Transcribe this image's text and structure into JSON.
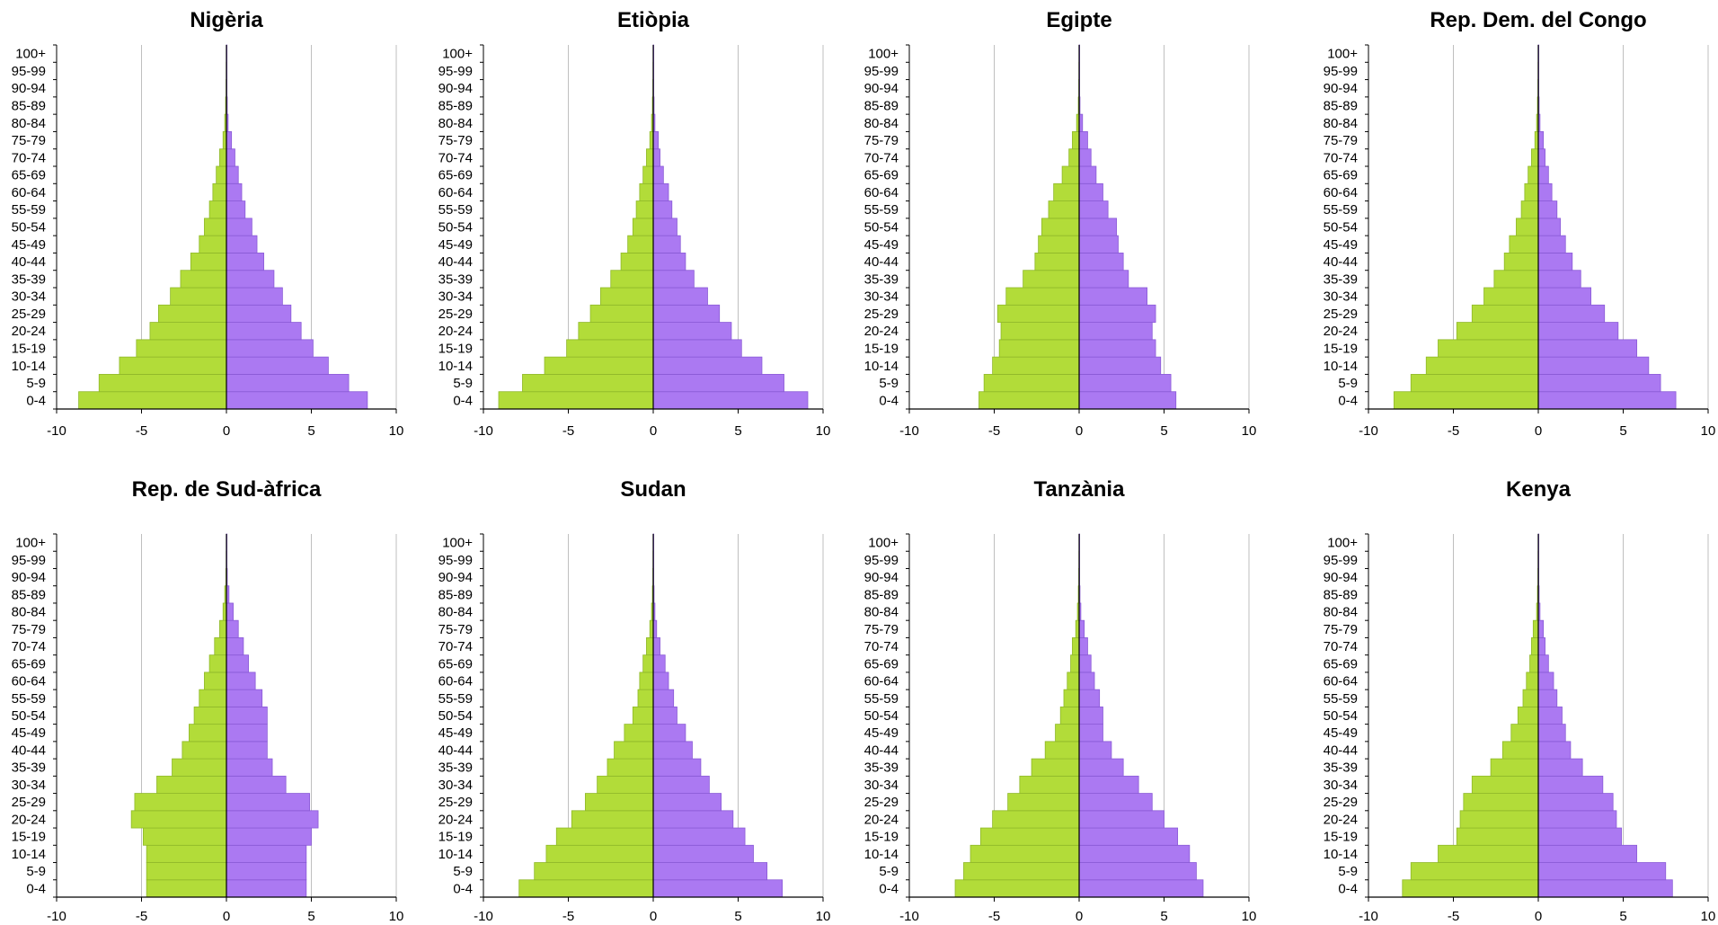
{
  "colors": {
    "male": "#b2dc39",
    "female": "#ab79f2",
    "bar_edge_male": "#8fb82a",
    "bar_edge_female": "#8a5ad6",
    "grid": "#bfbfbf",
    "axis": "#000000"
  },
  "chart_data": [
    {
      "type": "bar",
      "orientation": "horizontal-population-pyramid",
      "title": "Nigèria",
      "categories": [
        "0-4",
        "5-9",
        "10-14",
        "15-19",
        "20-24",
        "25-29",
        "30-34",
        "35-39",
        "40-44",
        "45-49",
        "50-54",
        "55-59",
        "60-64",
        "65-69",
        "70-74",
        "75-79",
        "80-84",
        "85-89",
        "90-94",
        "95-99",
        "100+"
      ],
      "series": [
        {
          "values": [
            -8.7,
            -7.5,
            -6.3,
            -5.3,
            -4.5,
            -4.0,
            -3.3,
            -2.7,
            -2.1,
            -1.6,
            -1.3,
            -1.0,
            -0.8,
            -0.6,
            -0.4,
            -0.2,
            -0.1,
            -0.05,
            -0.02,
            -0.01,
            -0.005
          ]
        },
        {
          "values": [
            8.3,
            7.2,
            6.0,
            5.1,
            4.4,
            3.8,
            3.3,
            2.8,
            2.2,
            1.8,
            1.5,
            1.1,
            0.9,
            0.7,
            0.5,
            0.3,
            0.1,
            0.05,
            0.02,
            0.01,
            0.005
          ]
        }
      ],
      "xlim": [
        -10,
        10
      ],
      "xticks": [
        "-10",
        "-5",
        "0",
        "5",
        "10"
      ],
      "grid": true
    },
    {
      "type": "bar",
      "orientation": "horizontal-population-pyramid",
      "title": "Etiòpia",
      "categories": [
        "0-4",
        "5-9",
        "10-14",
        "15-19",
        "20-24",
        "25-29",
        "30-34",
        "35-39",
        "40-44",
        "45-49",
        "50-54",
        "55-59",
        "60-64",
        "65-69",
        "70-74",
        "75-79",
        "80-84",
        "85-89",
        "90-94",
        "95-99",
        "100+"
      ],
      "series": [
        {
          "values": [
            -9.1,
            -7.7,
            -6.4,
            -5.1,
            -4.4,
            -3.7,
            -3.1,
            -2.5,
            -1.9,
            -1.5,
            -1.2,
            -1.0,
            -0.8,
            -0.6,
            -0.4,
            -0.2,
            -0.1,
            -0.05,
            -0.02,
            -0.01,
            -0.005
          ]
        },
        {
          "values": [
            9.1,
            7.7,
            6.4,
            5.2,
            4.6,
            3.9,
            3.2,
            2.4,
            1.9,
            1.6,
            1.4,
            1.1,
            0.9,
            0.6,
            0.4,
            0.3,
            0.1,
            0.05,
            0.02,
            0.01,
            0.005
          ]
        }
      ],
      "xlim": [
        -10,
        10
      ],
      "xticks": [
        "-10",
        "-5",
        "0",
        "5",
        "10"
      ],
      "grid": true
    },
    {
      "type": "bar",
      "orientation": "horizontal-population-pyramid",
      "title": "Egipte",
      "categories": [
        "0-4",
        "5-9",
        "10-14",
        "15-19",
        "20-24",
        "25-29",
        "30-34",
        "35-39",
        "40-44",
        "45-49",
        "50-54",
        "55-59",
        "60-64",
        "65-69",
        "70-74",
        "75-79",
        "80-84",
        "85-89",
        "90-94",
        "95-99",
        "100+"
      ],
      "series": [
        {
          "values": [
            -5.9,
            -5.6,
            -5.1,
            -4.7,
            -4.6,
            -4.8,
            -4.3,
            -3.3,
            -2.6,
            -2.4,
            -2.2,
            -1.8,
            -1.5,
            -1.0,
            -0.6,
            -0.4,
            -0.15,
            -0.05,
            -0.02,
            -0.01,
            -0.005
          ]
        },
        {
          "values": [
            5.7,
            5.4,
            4.8,
            4.5,
            4.3,
            4.5,
            4.0,
            2.9,
            2.6,
            2.3,
            2.2,
            1.7,
            1.4,
            1.0,
            0.7,
            0.5,
            0.2,
            0.05,
            0.02,
            0.01,
            0.005
          ]
        }
      ],
      "xlim": [
        -10,
        10
      ],
      "xticks": [
        "-10",
        "-5",
        "0",
        "5",
        "10"
      ],
      "grid": true
    },
    {
      "type": "bar",
      "orientation": "horizontal-population-pyramid",
      "title": "Rep. Dem. del Congo",
      "categories": [
        "0-4",
        "5-9",
        "10-14",
        "15-19",
        "20-24",
        "25-29",
        "30-34",
        "35-39",
        "40-44",
        "45-49",
        "50-54",
        "55-59",
        "60-64",
        "65-69",
        "70-74",
        "75-79",
        "80-84",
        "85-89",
        "90-94",
        "95-99",
        "100+"
      ],
      "series": [
        {
          "values": [
            -8.5,
            -7.5,
            -6.6,
            -5.9,
            -4.8,
            -3.9,
            -3.2,
            -2.6,
            -2.0,
            -1.7,
            -1.3,
            -1.0,
            -0.8,
            -0.6,
            -0.4,
            -0.2,
            -0.1,
            -0.05,
            -0.02,
            -0.01,
            -0.005
          ]
        },
        {
          "values": [
            8.1,
            7.2,
            6.5,
            5.8,
            4.7,
            3.9,
            3.1,
            2.5,
            2.0,
            1.6,
            1.3,
            1.1,
            0.8,
            0.6,
            0.4,
            0.3,
            0.1,
            0.05,
            0.02,
            0.01,
            0.005
          ]
        }
      ],
      "xlim": [
        -10,
        10
      ],
      "xticks": [
        "-10",
        "-5",
        "0",
        "5",
        "10"
      ],
      "grid": true
    },
    {
      "type": "bar",
      "orientation": "horizontal-population-pyramid",
      "title": "Rep. de Sud-àfrica",
      "categories": [
        "0-4",
        "5-9",
        "10-14",
        "15-19",
        "20-24",
        "25-29",
        "30-34",
        "35-39",
        "40-44",
        "45-49",
        "50-54",
        "55-59",
        "60-64",
        "65-69",
        "70-74",
        "75-79",
        "80-84",
        "85-89",
        "90-94",
        "95-99",
        "100+"
      ],
      "series": [
        {
          "values": [
            -4.7,
            -4.7,
            -4.7,
            -4.9,
            -5.6,
            -5.4,
            -4.1,
            -3.2,
            -2.6,
            -2.2,
            -1.9,
            -1.6,
            -1.3,
            -1.0,
            -0.7,
            -0.4,
            -0.2,
            -0.1,
            -0.03,
            -0.01,
            -0.005
          ]
        },
        {
          "values": [
            4.7,
            4.7,
            4.7,
            5.0,
            5.4,
            4.9,
            3.5,
            2.7,
            2.4,
            2.4,
            2.4,
            2.1,
            1.7,
            1.3,
            1.0,
            0.7,
            0.4,
            0.15,
            0.05,
            0.02,
            0.005
          ]
        }
      ],
      "xlim": [
        -10,
        10
      ],
      "xticks": [
        "-10",
        "-5",
        "0",
        "5",
        "10"
      ],
      "grid": true
    },
    {
      "type": "bar",
      "orientation": "horizontal-population-pyramid",
      "title": "Sudan",
      "categories": [
        "0-4",
        "5-9",
        "10-14",
        "15-19",
        "20-24",
        "25-29",
        "30-34",
        "35-39",
        "40-44",
        "45-49",
        "50-54",
        "55-59",
        "60-64",
        "65-69",
        "70-74",
        "75-79",
        "80-84",
        "85-89",
        "90-94",
        "95-99",
        "100+"
      ],
      "series": [
        {
          "values": [
            -7.9,
            -7.0,
            -6.3,
            -5.7,
            -4.8,
            -4.0,
            -3.3,
            -2.7,
            -2.3,
            -1.7,
            -1.2,
            -0.9,
            -0.8,
            -0.6,
            -0.4,
            -0.2,
            -0.1,
            -0.05,
            -0.02,
            -0.01,
            -0.005
          ]
        },
        {
          "values": [
            7.6,
            6.7,
            5.9,
            5.4,
            4.7,
            4.0,
            3.3,
            2.8,
            2.3,
            1.9,
            1.4,
            1.2,
            0.9,
            0.7,
            0.4,
            0.2,
            0.1,
            0.05,
            0.02,
            0.01,
            0.005
          ]
        }
      ],
      "xlim": [
        -10,
        10
      ],
      "xticks": [
        "-10",
        "-5",
        "0",
        "5",
        "10"
      ],
      "grid": true
    },
    {
      "type": "bar",
      "orientation": "horizontal-population-pyramid",
      "title": "Tanzània",
      "categories": [
        "0-4",
        "5-9",
        "10-14",
        "15-19",
        "20-24",
        "25-29",
        "30-34",
        "35-39",
        "40-44",
        "45-49",
        "50-54",
        "55-59",
        "60-64",
        "65-69",
        "70-74",
        "75-79",
        "80-84",
        "85-89",
        "90-94",
        "95-99",
        "100+"
      ],
      "series": [
        {
          "values": [
            -7.3,
            -6.8,
            -6.4,
            -5.8,
            -5.1,
            -4.2,
            -3.5,
            -2.8,
            -2.0,
            -1.4,
            -1.1,
            -0.9,
            -0.7,
            -0.5,
            -0.4,
            -0.2,
            -0.1,
            -0.05,
            -0.02,
            -0.01,
            -0.005
          ]
        },
        {
          "values": [
            7.3,
            6.9,
            6.5,
            5.8,
            5.0,
            4.3,
            3.5,
            2.6,
            1.9,
            1.4,
            1.4,
            1.2,
            0.9,
            0.7,
            0.5,
            0.3,
            0.1,
            0.05,
            0.02,
            0.01,
            0.005
          ]
        }
      ],
      "xlim": [
        -10,
        10
      ],
      "xticks": [
        "-10",
        "-5",
        "0",
        "5",
        "10"
      ],
      "grid": true
    },
    {
      "type": "bar",
      "orientation": "horizontal-population-pyramid",
      "title": "Kenya",
      "categories": [
        "0-4",
        "5-9",
        "10-14",
        "15-19",
        "20-24",
        "25-29",
        "30-34",
        "35-39",
        "40-44",
        "45-49",
        "50-54",
        "55-59",
        "60-64",
        "65-69",
        "70-74",
        "75-79",
        "80-84",
        "85-89",
        "90-94",
        "95-99",
        "100+"
      ],
      "series": [
        {
          "values": [
            -8.0,
            -7.5,
            -5.9,
            -4.8,
            -4.6,
            -4.4,
            -3.9,
            -2.8,
            -2.1,
            -1.6,
            -1.2,
            -0.9,
            -0.7,
            -0.5,
            -0.4,
            -0.3,
            -0.1,
            -0.05,
            -0.02,
            -0.01,
            -0.005
          ]
        },
        {
          "values": [
            7.9,
            7.5,
            5.8,
            4.9,
            4.6,
            4.4,
            3.8,
            2.6,
            1.9,
            1.6,
            1.4,
            1.1,
            0.9,
            0.6,
            0.4,
            0.3,
            0.1,
            0.05,
            0.02,
            0.01,
            0.005
          ]
        }
      ],
      "xlim": [
        -10,
        10
      ],
      "xticks": [
        "-10",
        "-5",
        "0",
        "5",
        "10"
      ],
      "grid": true
    }
  ]
}
